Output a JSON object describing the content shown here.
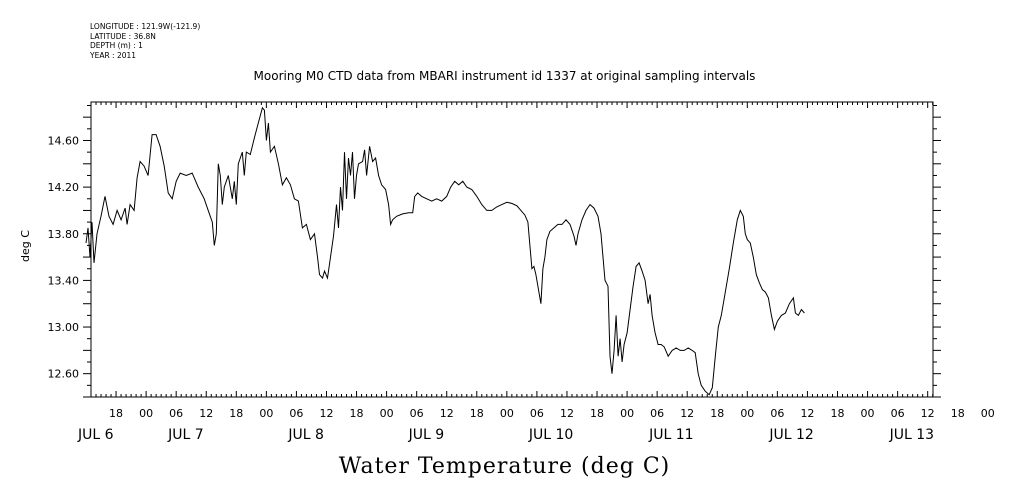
{
  "metadata": {
    "longitude": "LONGITUDE : 121.9W(-121.9)",
    "latitude": "LATITUDE : 36.8N",
    "depth": "DEPTH (m) : 1",
    "year": "YEAR : 2011"
  },
  "chart_data": {
    "type": "line",
    "title": "Mooring M0 CTD data from MBARI instrument id 1337 at original sampling intervals",
    "xlabel": "Water Temperature (deg C)",
    "ylabel": "deg C",
    "x_unit": "hours since 2011-07-05 12:00",
    "xlim": [
      0,
      180
    ],
    "ylim": [
      12.4,
      14.93
    ],
    "yticks": [
      "12.60",
      "13.00",
      "13.40",
      "13.80",
      "14.20",
      "14.60"
    ],
    "ytick_values": [
      12.6,
      13.0,
      13.4,
      13.8,
      14.2,
      14.6
    ],
    "xtick_labels": [
      "18",
      "00",
      "06",
      "12",
      "18",
      "00",
      "06",
      "12",
      "18",
      "00",
      "06",
      "12",
      "18",
      "00",
      "06",
      "12",
      "18",
      "00",
      "06",
      "12",
      "18",
      "00",
      "06",
      "12",
      "18",
      "00",
      "06",
      "12",
      "18",
      "00",
      "06",
      "12"
    ],
    "xtick_hours": [
      6,
      12,
      18,
      24,
      30,
      36,
      42,
      48,
      54,
      60,
      66,
      72,
      78,
      84,
      90,
      96,
      102,
      108,
      114,
      120,
      126,
      132,
      138,
      144,
      150,
      156,
      162,
      168,
      174,
      180,
      186,
      192
    ],
    "day_labels": [
      "JUL  6",
      "JUL  7",
      "JUL  8",
      "JUL  9",
      "JUL 10",
      "JUL 11",
      "JUL 12",
      "JUL 13"
    ],
    "day_label_hours": [
      0,
      18,
      42,
      66,
      90,
      114,
      138,
      162
    ],
    "grid": false,
    "series": [
      {
        "name": "",
        "points": [
          [
            0,
            13.72
          ],
          [
            0.4,
            13.85
          ],
          [
            0.8,
            13.6
          ],
          [
            1.2,
            13.9
          ],
          [
            1.6,
            13.55
          ],
          [
            2.2,
            13.8
          ],
          [
            3,
            13.95
          ],
          [
            3.8,
            14.12
          ],
          [
            4.6,
            13.95
          ],
          [
            5.4,
            13.88
          ],
          [
            6.2,
            14.0
          ],
          [
            7,
            13.92
          ],
          [
            7.8,
            14.02
          ],
          [
            8.2,
            13.88
          ],
          [
            8.8,
            14.05
          ],
          [
            9.6,
            14.0
          ],
          [
            10.2,
            14.28
          ],
          [
            10.8,
            14.42
          ],
          [
            11.6,
            14.38
          ],
          [
            12.4,
            14.3
          ],
          [
            13.2,
            14.65
          ],
          [
            14,
            14.65
          ],
          [
            14.8,
            14.55
          ],
          [
            15.6,
            14.38
          ],
          [
            16.4,
            14.15
          ],
          [
            17.2,
            14.1
          ],
          [
            18,
            14.25
          ],
          [
            18.8,
            14.32
          ],
          [
            20,
            14.3
          ],
          [
            21.2,
            14.32
          ],
          [
            22.4,
            14.2
          ],
          [
            23.6,
            14.1
          ],
          [
            24.4,
            14.0
          ],
          [
            25.2,
            13.9
          ],
          [
            25.6,
            13.7
          ],
          [
            26,
            13.8
          ],
          [
            26.4,
            14.4
          ],
          [
            26.8,
            14.3
          ],
          [
            27.2,
            14.05
          ],
          [
            27.6,
            14.2
          ],
          [
            28.4,
            14.3
          ],
          [
            29.2,
            14.1
          ],
          [
            29.6,
            14.25
          ],
          [
            30,
            14.05
          ],
          [
            30.4,
            14.4
          ],
          [
            31.2,
            14.5
          ],
          [
            31.6,
            14.3
          ],
          [
            32,
            14.5
          ],
          [
            32.8,
            14.48
          ],
          [
            33.6,
            14.62
          ],
          [
            34.4,
            14.75
          ],
          [
            35.2,
            14.88
          ],
          [
            35.6,
            14.86
          ],
          [
            36,
            14.6
          ],
          [
            36.4,
            14.75
          ],
          [
            36.8,
            14.5
          ],
          [
            37.6,
            14.55
          ],
          [
            38.4,
            14.4
          ],
          [
            39.2,
            14.22
          ],
          [
            40,
            14.28
          ],
          [
            40.8,
            14.22
          ],
          [
            41.6,
            14.1
          ],
          [
            42.4,
            14.08
          ],
          [
            43.2,
            13.85
          ],
          [
            44,
            13.88
          ],
          [
            44.8,
            13.75
          ],
          [
            45.6,
            13.8
          ],
          [
            46.2,
            13.6
          ],
          [
            46.6,
            13.45
          ],
          [
            47.2,
            13.42
          ],
          [
            47.6,
            13.48
          ],
          [
            48.2,
            13.42
          ],
          [
            48.8,
            13.6
          ],
          [
            49.4,
            13.78
          ],
          [
            50,
            14.05
          ],
          [
            50.4,
            13.85
          ],
          [
            50.8,
            14.2
          ],
          [
            51.2,
            14.0
          ],
          [
            51.6,
            14.5
          ],
          [
            52,
            14.1
          ],
          [
            52.4,
            14.45
          ],
          [
            52.8,
            14.3
          ],
          [
            53.2,
            14.5
          ],
          [
            53.6,
            14.1
          ],
          [
            54,
            14.3
          ],
          [
            54.4,
            14.4
          ],
          [
            55.2,
            14.42
          ],
          [
            55.6,
            14.52
          ],
          [
            56,
            14.3
          ],
          [
            56.6,
            14.55
          ],
          [
            57.2,
            14.42
          ],
          [
            57.8,
            14.45
          ],
          [
            58.4,
            14.3
          ],
          [
            59,
            14.22
          ],
          [
            59.8,
            14.18
          ],
          [
            60.4,
            14.05
          ],
          [
            60.8,
            13.88
          ],
          [
            61.2,
            13.92
          ],
          [
            62,
            13.95
          ],
          [
            63.2,
            13.97
          ],
          [
            64.4,
            13.98
          ],
          [
            65.2,
            13.98
          ],
          [
            65.6,
            14.12
          ],
          [
            66.2,
            14.15
          ],
          [
            67,
            14.12
          ],
          [
            68,
            14.1
          ],
          [
            69,
            14.08
          ],
          [
            70,
            14.1
          ],
          [
            71,
            14.08
          ],
          [
            72,
            14.12
          ],
          [
            72.8,
            14.2
          ],
          [
            73.6,
            14.25
          ],
          [
            74.4,
            14.22
          ],
          [
            75.2,
            14.25
          ],
          [
            76,
            14.2
          ],
          [
            77,
            14.18
          ],
          [
            78,
            14.12
          ],
          [
            79,
            14.05
          ],
          [
            80,
            14.0
          ],
          [
            81,
            14.0
          ],
          [
            82,
            14.03
          ],
          [
            83,
            14.05
          ],
          [
            84,
            14.07
          ],
          [
            85,
            14.06
          ],
          [
            86,
            14.04
          ],
          [
            86.8,
            14.0
          ],
          [
            87.6,
            13.96
          ],
          [
            88.2,
            13.9
          ],
          [
            88.6,
            13.7
          ],
          [
            89,
            13.5
          ],
          [
            89.4,
            13.52
          ],
          [
            89.8,
            13.45
          ],
          [
            90.4,
            13.3
          ],
          [
            90.8,
            13.2
          ],
          [
            91.2,
            13.5
          ],
          [
            91.6,
            13.6
          ],
          [
            92,
            13.75
          ],
          [
            92.6,
            13.82
          ],
          [
            93.4,
            13.85
          ],
          [
            94.2,
            13.88
          ],
          [
            95,
            13.88
          ],
          [
            95.8,
            13.92
          ],
          [
            96.6,
            13.88
          ],
          [
            97.4,
            13.78
          ],
          [
            97.8,
            13.7
          ],
          [
            98.2,
            13.8
          ],
          [
            99,
            13.92
          ],
          [
            99.8,
            14.0
          ],
          [
            100.6,
            14.05
          ],
          [
            101.4,
            14.02
          ],
          [
            102.2,
            13.95
          ],
          [
            102.8,
            13.8
          ],
          [
            103.2,
            13.6
          ],
          [
            103.6,
            13.4
          ],
          [
            104.2,
            13.35
          ],
          [
            104.6,
            12.75
          ],
          [
            105,
            12.6
          ],
          [
            105.4,
            12.8
          ],
          [
            105.8,
            13.1
          ],
          [
            106.2,
            12.75
          ],
          [
            106.6,
            12.9
          ],
          [
            107,
            12.7
          ],
          [
            107.4,
            12.85
          ],
          [
            108,
            12.95
          ],
          [
            108.6,
            13.15
          ],
          [
            109.2,
            13.35
          ],
          [
            109.8,
            13.52
          ],
          [
            110.4,
            13.55
          ],
          [
            111,
            13.48
          ],
          [
            111.6,
            13.4
          ],
          [
            112.2,
            13.2
          ],
          [
            112.6,
            13.28
          ],
          [
            113,
            13.1
          ],
          [
            113.6,
            12.95
          ],
          [
            114.2,
            12.85
          ],
          [
            114.8,
            12.85
          ],
          [
            115.4,
            12.83
          ],
          [
            116.2,
            12.75
          ],
          [
            117,
            12.8
          ],
          [
            117.8,
            12.82
          ],
          [
            118.6,
            12.8
          ],
          [
            119.4,
            12.8
          ],
          [
            120.2,
            12.82
          ],
          [
            121,
            12.8
          ],
          [
            121.6,
            12.78
          ],
          [
            122.2,
            12.6
          ],
          [
            122.8,
            12.5
          ],
          [
            123.6,
            12.45
          ],
          [
            124.4,
            12.42
          ],
          [
            125,
            12.48
          ],
          [
            125.6,
            12.75
          ],
          [
            126.2,
            13.0
          ],
          [
            126.8,
            13.1
          ],
          [
            127.6,
            13.3
          ],
          [
            128.4,
            13.5
          ],
          [
            129.2,
            13.72
          ],
          [
            130,
            13.92
          ],
          [
            130.6,
            14.0
          ],
          [
            131.2,
            13.95
          ],
          [
            131.6,
            13.8
          ],
          [
            132,
            13.75
          ],
          [
            132.6,
            13.72
          ],
          [
            133.2,
            13.6
          ],
          [
            133.8,
            13.45
          ],
          [
            134.4,
            13.38
          ],
          [
            135,
            13.32
          ],
          [
            135.6,
            13.3
          ],
          [
            136.2,
            13.25
          ],
          [
            136.8,
            13.1
          ],
          [
            137.4,
            12.98
          ],
          [
            138,
            13.05
          ],
          [
            138.8,
            13.1
          ],
          [
            139.6,
            13.12
          ],
          [
            140.4,
            13.2
          ],
          [
            141.2,
            13.25
          ],
          [
            141.6,
            13.12
          ],
          [
            142.2,
            13.1
          ],
          [
            142.8,
            13.15
          ],
          [
            143.4,
            13.12
          ]
        ]
      }
    ]
  }
}
